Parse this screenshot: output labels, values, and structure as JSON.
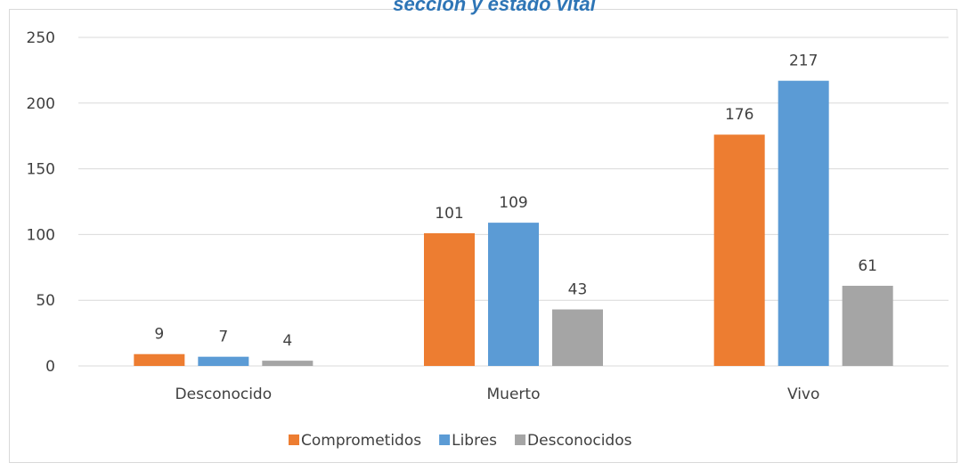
{
  "chart_data": {
    "type": "bar",
    "title": "sección y estado vital",
    "categories": [
      "Desconocido",
      "Muerto",
      "Vivo"
    ],
    "series": [
      {
        "name": "Comprometidos",
        "color": "#ed7d31",
        "values": [
          9,
          101,
          176
        ]
      },
      {
        "name": "Libres",
        "color": "#5b9bd5",
        "values": [
          7,
          109,
          217
        ]
      },
      {
        "name": "Desconocidos",
        "color": "#a5a5a5",
        "values": [
          4,
          43,
          61
        ]
      }
    ],
    "ylim": [
      0,
      250
    ],
    "yticks": [
      0,
      50,
      100,
      150,
      200,
      250
    ],
    "grid": true,
    "legend": "bottom"
  }
}
